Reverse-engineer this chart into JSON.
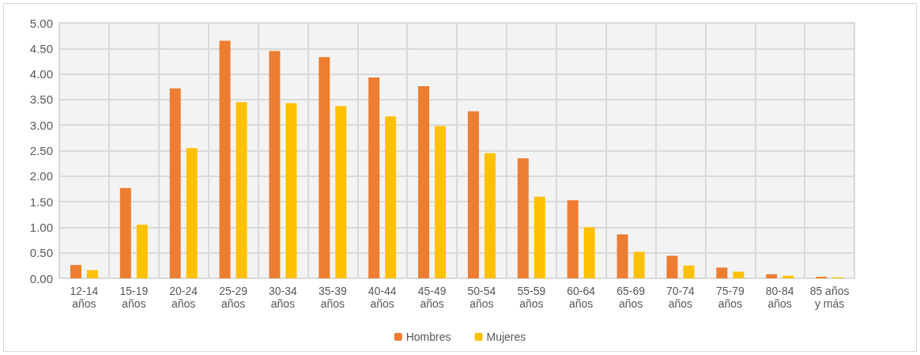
{
  "chart_data": {
    "type": "bar",
    "categories": [
      "12-14\naños",
      "15-19\naños",
      "20-24\naños",
      "25-29\naños",
      "30-34\naños",
      "35-39\naños",
      "40-44\naños",
      "45-49\naños",
      "50-54\naños",
      "55-59\naños",
      "60-64\naños",
      "65-69\naños",
      "70-74\naños",
      "75-79\naños",
      "80-84\naños",
      "85 años\ny más"
    ],
    "series": [
      {
        "name": "Hombres",
        "color": "#ed7d31",
        "values": [
          0.26,
          1.77,
          3.72,
          4.65,
          4.45,
          4.33,
          3.93,
          3.76,
          3.27,
          2.35,
          1.53,
          0.86,
          0.44,
          0.21,
          0.08,
          0.03
        ]
      },
      {
        "name": "Mujeres",
        "color": "#ffc000",
        "values": [
          0.16,
          1.05,
          2.55,
          3.45,
          3.43,
          3.37,
          3.17,
          2.98,
          2.45,
          1.6,
          1.0,
          0.52,
          0.25,
          0.13,
          0.05,
          0.02
        ]
      }
    ],
    "ylim": [
      0,
      5
    ],
    "yticks": [
      {
        "value": 0,
        "label": "0.00"
      },
      {
        "value": 0.5,
        "label": "0.50"
      },
      {
        "value": 1,
        "label": "1.00"
      },
      {
        "value": 1.5,
        "label": "1.50"
      },
      {
        "value": 2,
        "label": "2.00"
      },
      {
        "value": 2.5,
        "label": "2.50"
      },
      {
        "value": 3,
        "label": "3.00"
      },
      {
        "value": 3.5,
        "label": "3.50"
      },
      {
        "value": 4,
        "label": "4.00"
      },
      {
        "value": 4.5,
        "label": "4.50"
      },
      {
        "value": 5,
        "label": "5.00"
      }
    ],
    "grid": true,
    "legend": "bottom"
  }
}
